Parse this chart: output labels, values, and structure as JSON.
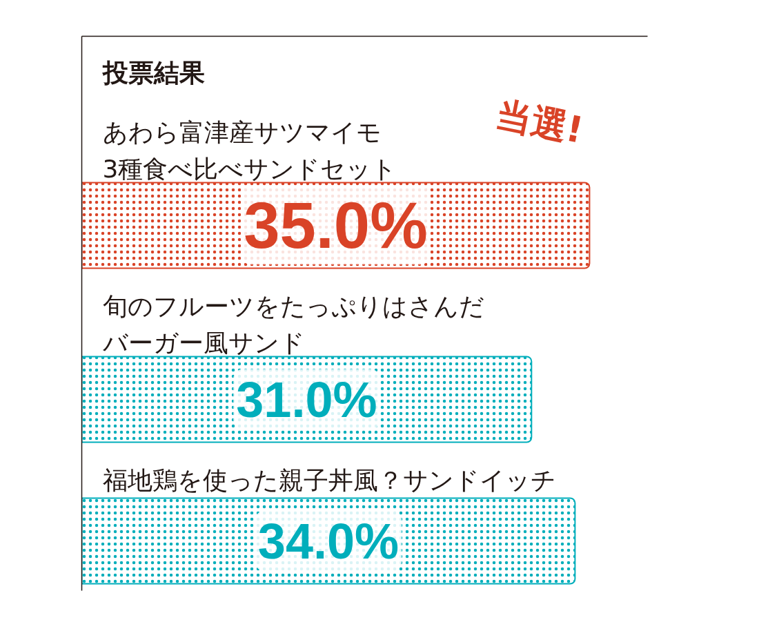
{
  "chart_data": {
    "type": "bar",
    "orientation": "horizontal",
    "title": "投票結果",
    "categories": [
      "あわら富津産サツマイモ3種食べ比べサンドセット",
      "旬のフルーツをたっぷりはさんだバーガー風サンド",
      "福地鶏を使った親子丼風？サンドイッチ"
    ],
    "values": [
      35.0,
      31.0,
      34.0
    ],
    "colors": [
      "#d94327",
      "#00aebb",
      "#00aebb"
    ],
    "value_labels": [
      "35.0%",
      "31.0%",
      "34.0%"
    ],
    "xlim": [
      0,
      39
    ],
    "tick_labels": "y",
    "annotations": [
      {
        "text": "当選!",
        "x": 35,
        "y": "あわら富津産サツマイモ3種食べ比べサンドセット"
      }
    ]
  }
}
